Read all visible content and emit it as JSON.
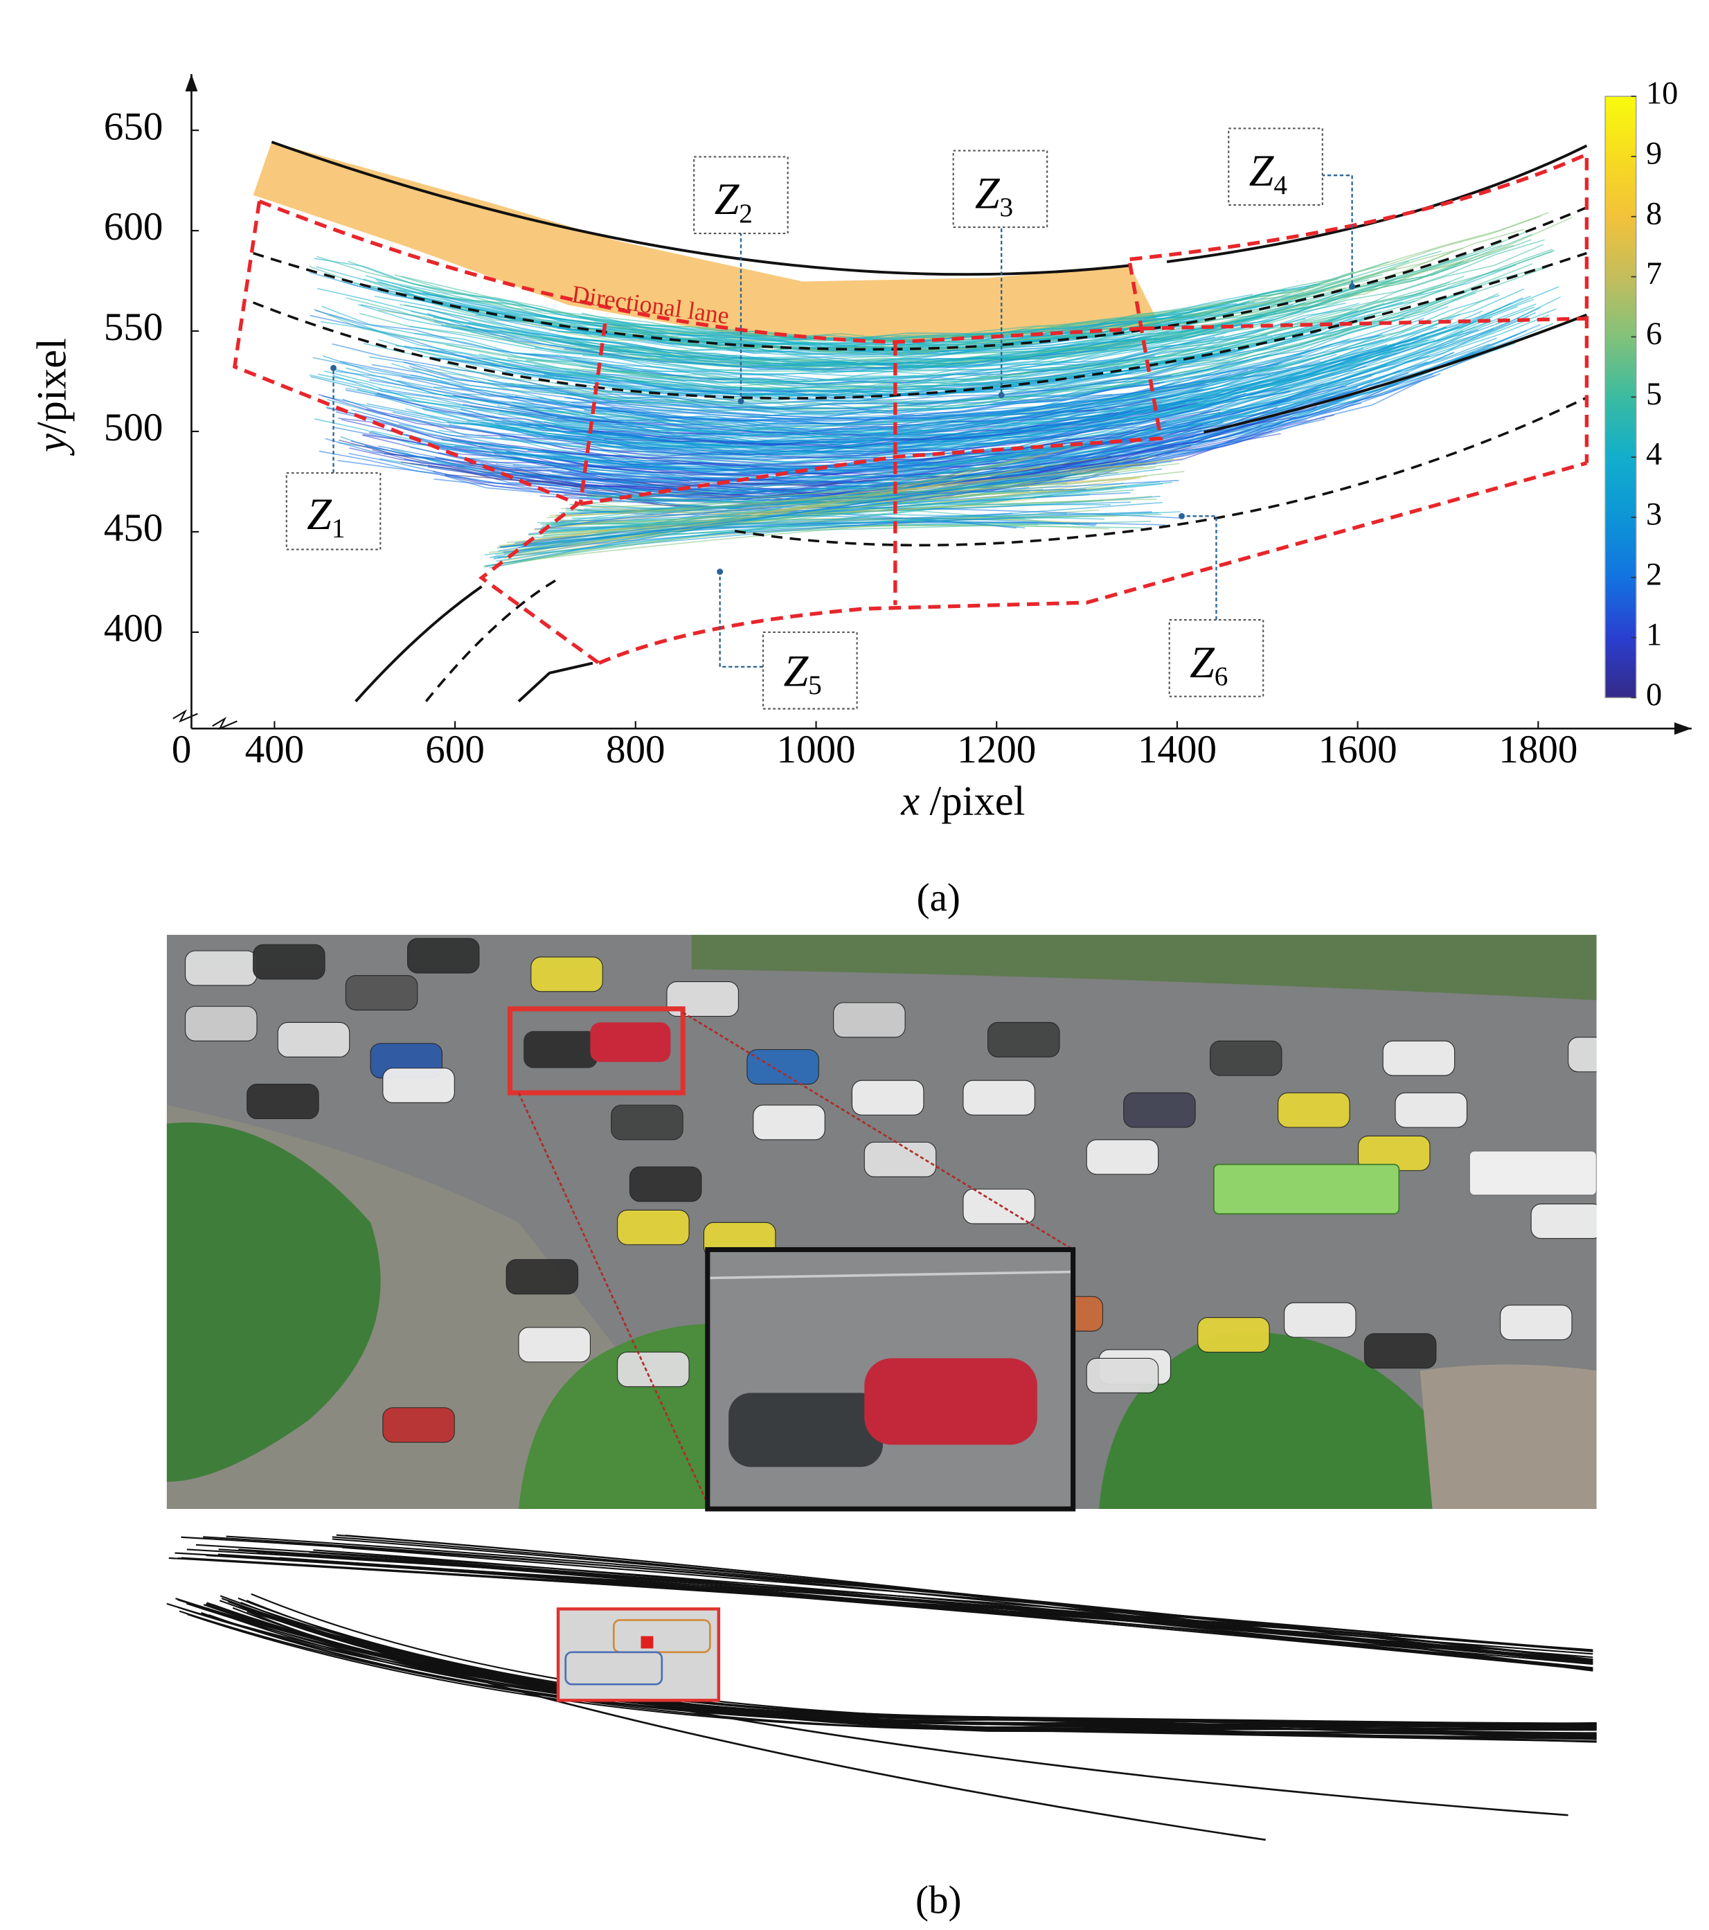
{
  "chart_data": {
    "type": "scatter",
    "xlabel": {
      "var": "x",
      "unit": "/pixel"
    },
    "ylabel": {
      "var": "y",
      "unit": "/pixel"
    },
    "xlim": [
      308,
      1970
    ],
    "xticks": [
      400,
      600,
      800,
      1000,
      1200,
      1400,
      1600,
      1800
    ],
    "x_origin_label": 0,
    "ylim": [
      352,
      678
    ],
    "yticks": [
      400,
      450,
      500,
      550,
      600,
      650
    ],
    "colorbar": {
      "lim": [
        0,
        10
      ],
      "ticks": [
        0,
        1,
        2,
        3,
        4,
        5,
        6,
        7,
        8,
        9,
        10
      ],
      "colors": [
        "#352a87",
        "#2a3fd0",
        "#1273e0",
        "#0d95d6",
        "#12aecc",
        "#3bbba0",
        "#82c27a",
        "#c4bd5c",
        "#f2c23a",
        "#f7dc20",
        "#f9fb0e"
      ]
    },
    "annotation": "Directional lane",
    "zones": [
      {
        "letter": "Z",
        "index": "1"
      },
      {
        "letter": "Z",
        "index": "2"
      },
      {
        "letter": "Z",
        "index": "3"
      },
      {
        "letter": "Z",
        "index": "4"
      },
      {
        "letter": "Z",
        "index": "5"
      },
      {
        "letter": "Z",
        "index": "6"
      }
    ]
  },
  "captions": [
    "(a)",
    "(b)"
  ]
}
